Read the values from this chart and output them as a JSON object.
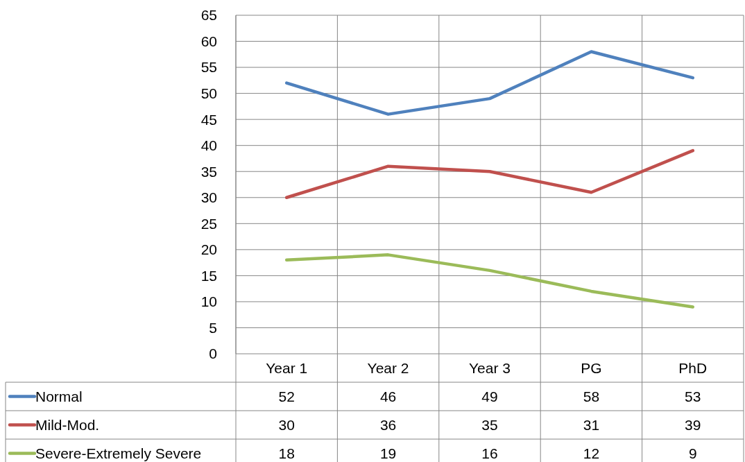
{
  "chart_data": {
    "type": "line",
    "categories": [
      "Year 1",
      "Year 2",
      "Year 3",
      "PG",
      "PhD"
    ],
    "series": [
      {
        "name": "Normal",
        "color": "#4f81bd",
        "values": [
          52,
          46,
          49,
          58,
          53
        ]
      },
      {
        "name": "Mild-Mod.",
        "color": "#c0504d",
        "values": [
          30,
          36,
          35,
          31,
          39
        ]
      },
      {
        "name": "Severe-Extremely Severe",
        "color": "#9bbb59",
        "values": [
          18,
          19,
          16,
          12,
          9
        ]
      }
    ],
    "ylim": [
      0,
      65
    ],
    "yticks": [
      0,
      5,
      10,
      15,
      20,
      25,
      30,
      35,
      40,
      45,
      50,
      55,
      60,
      65
    ],
    "grid": true,
    "legend": "bottom",
    "data_labels": true,
    "marker": "none",
    "line_style": "solid"
  }
}
